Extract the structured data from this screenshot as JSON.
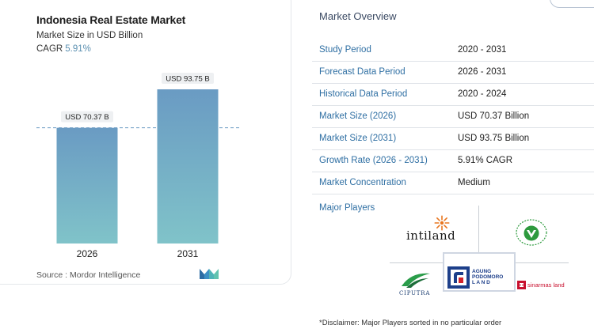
{
  "chart_data": {
    "type": "bar",
    "title": "Indonesia Real Estate Market",
    "subtitle": "Market Size in USD Billion",
    "cagr_label": "CAGR",
    "cagr_value": "5.91%",
    "categories": [
      "2026",
      "2031"
    ],
    "values": [
      70.37,
      93.75
    ],
    "value_labels": [
      "USD 70.37 B",
      "USD 93.75 B"
    ],
    "ylim": [
      0,
      100
    ],
    "xlabel": "",
    "ylabel": "",
    "reference_line": "dashed line at 2026 value",
    "bar_colors": {
      "top": "#6a9bc3",
      "bottom": "#80c3c9"
    },
    "source": "Source : Mordor Intelligence"
  },
  "overview": {
    "title": "Market Overview",
    "rows": [
      {
        "label": "Study Period",
        "value": "2020 - 2031"
      },
      {
        "label": "Forecast Data Period",
        "value": "2026 - 2031"
      },
      {
        "label": "Historical Data Period",
        "value": "2020 - 2024"
      },
      {
        "label": "Market Size (2026)",
        "value": "USD 70.37 Billion"
      },
      {
        "label": "Market Size (2031)",
        "value": "USD 93.75 Billion"
      },
      {
        "label": "Growth Rate (2026 - 2031)",
        "value": "5.91% CAGR"
      },
      {
        "label": "Market Concentration",
        "value": "Medium"
      }
    ],
    "major_players_label": "Major Players",
    "players": {
      "intiland": "intiland",
      "ciputra": "CIPUTRA",
      "apl_line1": "AGUNG",
      "apl_line2": "PODOMORO",
      "apl_line3": "L A N D",
      "sinarmas": "sinarmas land"
    },
    "disclaimer": "*Disclaimer: Major Players sorted in no particular order"
  },
  "colors": {
    "label_blue": "#2f6fa3",
    "accent": "#5a8fb0",
    "divider": "#dfe3e8"
  }
}
